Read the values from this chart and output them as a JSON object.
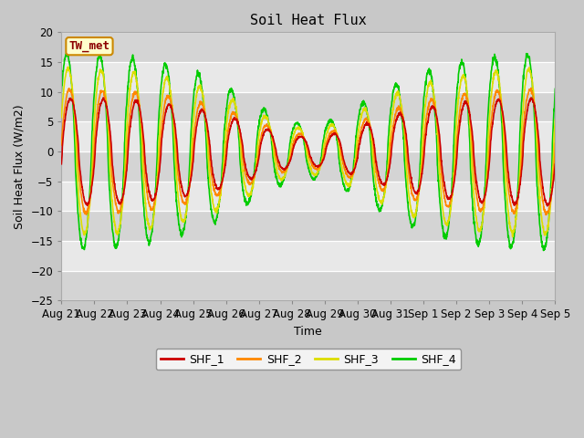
{
  "title": "Soil Heat Flux",
  "xlabel": "Time",
  "ylabel": "Soil Heat Flux (W/m2)",
  "ylim": [
    -25,
    20
  ],
  "yticks": [
    -25,
    -20,
    -15,
    -10,
    -5,
    0,
    5,
    10,
    15,
    20
  ],
  "colors": {
    "SHF_1": "#cc0000",
    "SHF_2": "#ff8800",
    "SHF_3": "#dddd00",
    "SHF_4": "#00cc00"
  },
  "legend_label": "TW_met",
  "legend_bg": "#ffffcc",
  "legend_border": "#cc8800",
  "x_tick_labels": [
    "Aug 21",
    "Aug 22",
    "Aug 23",
    "Aug 24",
    "Aug 25",
    "Aug 26",
    "Aug 27",
    "Aug 28",
    "Aug 29",
    "Aug 30",
    "Aug 31",
    "Sep 1",
    "Sep 2",
    "Sep 3",
    "Sep 4",
    "Sep 5"
  ],
  "fig_bg": "#c8c8c8",
  "plot_bg_light": "#e8e8e8",
  "plot_bg_dark": "#d4d4d4",
  "linewidth": 1.2,
  "n_days": 15,
  "samples_per_day": 144,
  "figsize": [
    6.4,
    4.8
  ],
  "dpi": 100
}
